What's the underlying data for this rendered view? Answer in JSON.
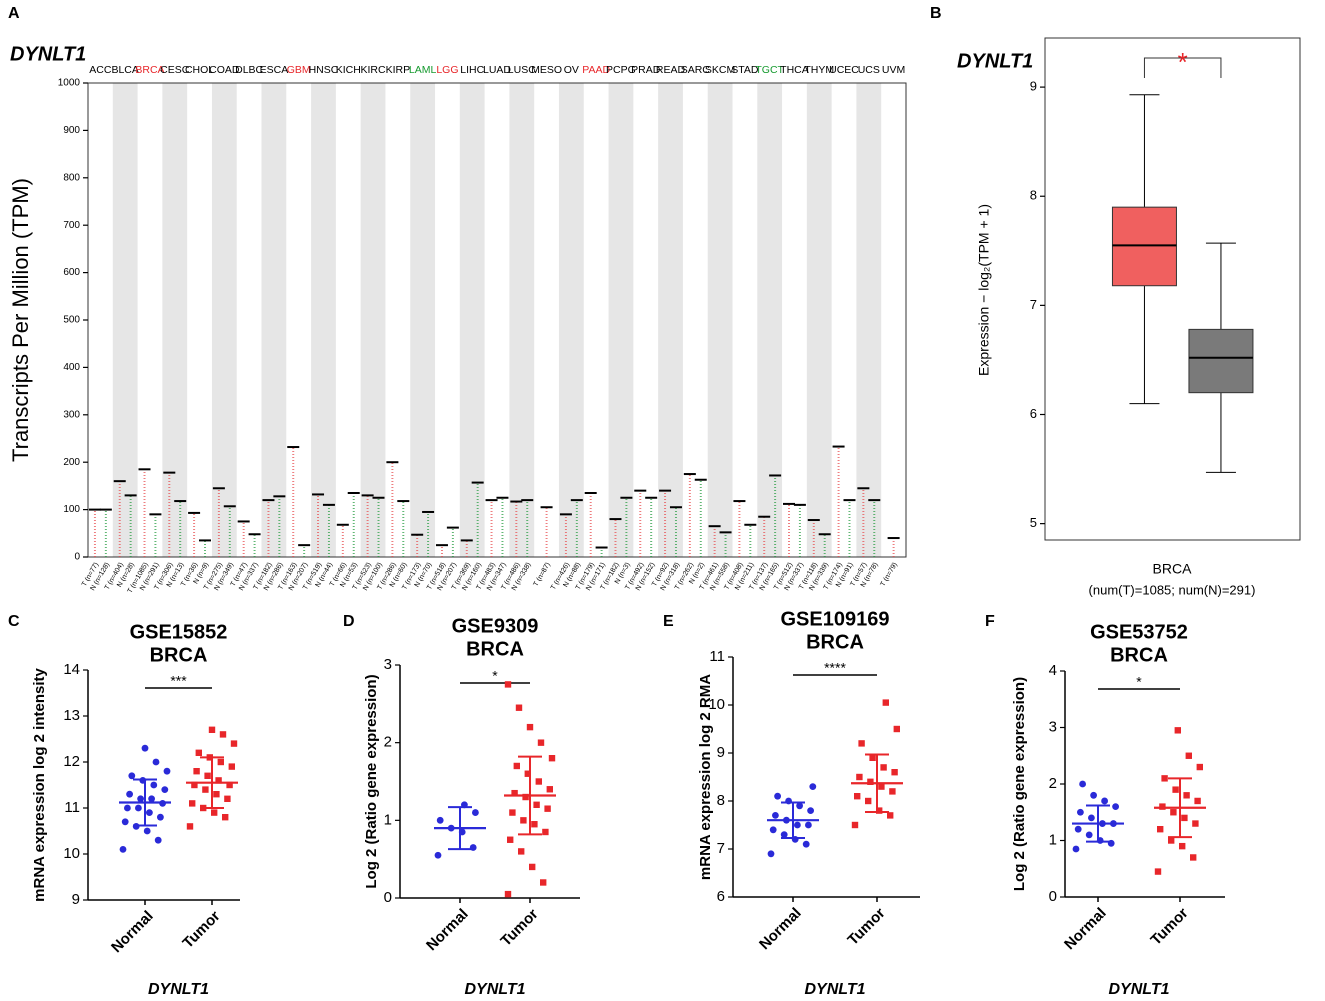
{
  "chart_data": [
    {
      "type": "strip",
      "panel": "A",
      "title": "DYNLT1",
      "ylabel": "Transcripts Per Million (TPM)",
      "ylim": [
        0,
        1000
      ],
      "yticks": [
        0,
        100,
        200,
        300,
        400,
        500,
        600,
        700,
        800,
        900,
        1000
      ],
      "categories": [
        {
          "name": "ACC",
          "color": "#000000",
          "groups": [
            {
              "label": "T (n=77)",
              "color": "#e8474a",
              "median": 100
            },
            {
              "label": "N (n=128)",
              "color": "#1f9a3a",
              "median": 100
            }
          ]
        },
        {
          "name": "BLCA",
          "color": "#000000",
          "groups": [
            {
              "label": "T (n=404)",
              "color": "#e8474a",
              "median": 160
            },
            {
              "label": "N (n=28)",
              "color": "#1f9a3a",
              "median": 130
            }
          ]
        },
        {
          "name": "BRCA",
          "color": "#e8262a",
          "groups": [
            {
              "label": "T (n=1085)",
              "color": "#e8474a",
              "median": 185
            },
            {
              "label": "N (n=291)",
              "color": "#1f9a3a",
              "median": 90
            }
          ]
        },
        {
          "name": "CESC",
          "color": "#000000",
          "groups": [
            {
              "label": "T (n=306)",
              "color": "#e8474a",
              "median": 178
            },
            {
              "label": "N (n=13)",
              "color": "#1f9a3a",
              "median": 118
            }
          ]
        },
        {
          "name": "CHOL",
          "color": "#000000",
          "groups": [
            {
              "label": "T (n=36)",
              "color": "#e8474a",
              "median": 93
            },
            {
              "label": "N (n=9)",
              "color": "#1f9a3a",
              "median": 35
            }
          ]
        },
        {
          "name": "COAD",
          "color": "#000000",
          "groups": [
            {
              "label": "T (n=275)",
              "color": "#e8474a",
              "median": 145
            },
            {
              "label": "N (n=349)",
              "color": "#1f9a3a",
              "median": 107
            }
          ]
        },
        {
          "name": "DLBC",
          "color": "#000000",
          "groups": [
            {
              "label": "T (n=47)",
              "color": "#e8474a",
              "median": 75
            },
            {
              "label": "N (n=337)",
              "color": "#1f9a3a",
              "median": 48
            }
          ]
        },
        {
          "name": "ESCA",
          "color": "#000000",
          "groups": [
            {
              "label": "T (n=182)",
              "color": "#e8474a",
              "median": 120
            },
            {
              "label": "N (n=286)",
              "color": "#1f9a3a",
              "median": 128
            }
          ]
        },
        {
          "name": "GBM",
          "color": "#e8262a",
          "groups": [
            {
              "label": "T (n=163)",
              "color": "#e8474a",
              "median": 232
            },
            {
              "label": "N (n=207)",
              "color": "#1f9a3a",
              "median": 25
            }
          ]
        },
        {
          "name": "HNSC",
          "color": "#000000",
          "groups": [
            {
              "label": "T (n=519)",
              "color": "#e8474a",
              "median": 132
            },
            {
              "label": "N (n=44)",
              "color": "#1f9a3a",
              "median": 110
            }
          ]
        },
        {
          "name": "KICH",
          "color": "#000000",
          "groups": [
            {
              "label": "T (n=66)",
              "color": "#e8474a",
              "median": 68
            },
            {
              "label": "N (n=53)",
              "color": "#1f9a3a",
              "median": 135
            }
          ]
        },
        {
          "name": "KIRC",
          "color": "#000000",
          "groups": [
            {
              "label": "T (n=523)",
              "color": "#e8474a",
              "median": 130
            },
            {
              "label": "N (n=100)",
              "color": "#1f9a3a",
              "median": 125
            }
          ]
        },
        {
          "name": "KIRP",
          "color": "#000000",
          "groups": [
            {
              "label": "T (n=286)",
              "color": "#e8474a",
              "median": 200
            },
            {
              "label": "N (n=60)",
              "color": "#1f9a3a",
              "median": 118
            }
          ]
        },
        {
          "name": "LAML",
          "color": "#169a2f",
          "groups": [
            {
              "label": "T (n=173)",
              "color": "#e8474a",
              "median": 47
            },
            {
              "label": "N (n=70)",
              "color": "#1f9a3a",
              "median": 95
            }
          ]
        },
        {
          "name": "LGG",
          "color": "#e8262a",
          "groups": [
            {
              "label": "T (n=518)",
              "color": "#e8474a",
              "median": 25
            },
            {
              "label": "N (n=207)",
              "color": "#1f9a3a",
              "median": 62
            }
          ]
        },
        {
          "name": "LIHC",
          "color": "#000000",
          "groups": [
            {
              "label": "T (n=369)",
              "color": "#e8474a",
              "median": 35
            },
            {
              "label": "N (n=160)",
              "color": "#1f9a3a",
              "median": 157
            }
          ]
        },
        {
          "name": "LUAD",
          "color": "#000000",
          "groups": [
            {
              "label": "T (n=483)",
              "color": "#e8474a",
              "median": 120
            },
            {
              "label": "N (n=347)",
              "color": "#1f9a3a",
              "median": 125
            }
          ]
        },
        {
          "name": "LUSC",
          "color": "#000000",
          "groups": [
            {
              "label": "T (n=486)",
              "color": "#e8474a",
              "median": 117
            },
            {
              "label": "N (n=338)",
              "color": "#1f9a3a",
              "median": 120
            }
          ]
        },
        {
          "name": "MESO",
          "color": "#000000",
          "groups": [
            {
              "label": "T (n=87)",
              "color": "#e8474a",
              "median": 105
            }
          ]
        },
        {
          "name": "OV",
          "color": "#000000",
          "groups": [
            {
              "label": "T (n=426)",
              "color": "#e8474a",
              "median": 90
            },
            {
              "label": "N (n=88)",
              "color": "#1f9a3a",
              "median": 120
            }
          ]
        },
        {
          "name": "PAAD",
          "color": "#e8262a",
          "groups": [
            {
              "label": "T (n=179)",
              "color": "#e8474a",
              "median": 135
            },
            {
              "label": "N (n=171)",
              "color": "#1f9a3a",
              "median": 20
            }
          ]
        },
        {
          "name": "PCPG",
          "color": "#000000",
          "groups": [
            {
              "label": "T (n=182)",
              "color": "#e8474a",
              "median": 80
            },
            {
              "label": "N (n=3)",
              "color": "#1f9a3a",
              "median": 125
            }
          ]
        },
        {
          "name": "PRAD",
          "color": "#000000",
          "groups": [
            {
              "label": "T (n=492)",
              "color": "#e8474a",
              "median": 140
            },
            {
              "label": "N (n=152)",
              "color": "#1f9a3a",
              "median": 125
            }
          ]
        },
        {
          "name": "READ",
          "color": "#000000",
          "groups": [
            {
              "label": "T (n=92)",
              "color": "#e8474a",
              "median": 140
            },
            {
              "label": "N (n=318)",
              "color": "#1f9a3a",
              "median": 105
            }
          ]
        },
        {
          "name": "SARC",
          "color": "#000000",
          "groups": [
            {
              "label": "T (n=262)",
              "color": "#e8474a",
              "median": 175
            },
            {
              "label": "N (n=2)",
              "color": "#1f9a3a",
              "median": 163
            }
          ]
        },
        {
          "name": "SKCM",
          "color": "#000000",
          "groups": [
            {
              "label": "T (n=461)",
              "color": "#e8474a",
              "median": 65
            },
            {
              "label": "N (n=558)",
              "color": "#1f9a3a",
              "median": 52
            }
          ]
        },
        {
          "name": "STAD",
          "color": "#000000",
          "groups": [
            {
              "label": "T (n=408)",
              "color": "#e8474a",
              "median": 118
            },
            {
              "label": "N (n=211)",
              "color": "#1f9a3a",
              "median": 68
            }
          ]
        },
        {
          "name": "TGCT",
          "color": "#169a2f",
          "groups": [
            {
              "label": "T (n=137)",
              "color": "#e8474a",
              "median": 85
            },
            {
              "label": "N (n=165)",
              "color": "#1f9a3a",
              "median": 172
            }
          ]
        },
        {
          "name": "THCA",
          "color": "#000000",
          "groups": [
            {
              "label": "T (n=512)",
              "color": "#e8474a",
              "median": 112
            },
            {
              "label": "N (n=337)",
              "color": "#1f9a3a",
              "median": 110
            }
          ]
        },
        {
          "name": "THYM",
          "color": "#000000",
          "groups": [
            {
              "label": "T (n=118)",
              "color": "#e8474a",
              "median": 78
            },
            {
              "label": "N (n=339)",
              "color": "#1f9a3a",
              "median": 48
            }
          ]
        },
        {
          "name": "UCEC",
          "color": "#000000",
          "groups": [
            {
              "label": "T (n=174)",
              "color": "#e8474a",
              "median": 233
            },
            {
              "label": "N (n=91)",
              "color": "#1f9a3a",
              "median": 120
            }
          ]
        },
        {
          "name": "UCS",
          "color": "#000000",
          "groups": [
            {
              "label": "T (n=57)",
              "color": "#e8474a",
              "median": 145
            },
            {
              "label": "N (n=78)",
              "color": "#1f9a3a",
              "median": 120
            }
          ]
        },
        {
          "name": "UVM",
          "color": "#000000",
          "groups": [
            {
              "label": "T (n=79)",
              "color": "#e8474a",
              "median": 40
            }
          ]
        }
      ]
    },
    {
      "type": "box",
      "panel": "B",
      "title": "DYNLT1",
      "ylabel": "Expression − log₂(TPM + 1)",
      "ylim": [
        4.85,
        9.45
      ],
      "yticks": [
        5,
        6,
        7,
        8,
        9
      ],
      "category": "BRCA",
      "subtitle": "(num(T)=1085; num(N)=291)",
      "annotation": "*",
      "boxes": [
        {
          "color": "#f0605f",
          "whisker_low": 6.1,
          "q1": 7.18,
          "median": 7.55,
          "q3": 7.9,
          "whisker_high": 8.93
        },
        {
          "color": "#7a7a7a",
          "whisker_low": 5.47,
          "q1": 6.2,
          "median": 6.52,
          "q3": 6.78,
          "whisker_high": 7.57
        }
      ]
    },
    {
      "type": "dot",
      "panel": "C",
      "title": "GSE15852",
      "subtitle": "BRCA",
      "ylabel": "mRNA expression log 2 intensity",
      "xlabel": "DYNLT1",
      "ylim": [
        9,
        14
      ],
      "yticks": [
        9,
        10,
        11,
        12,
        13,
        14
      ],
      "significance": "***",
      "series": [
        {
          "name": "Normal",
          "color": "#2a2ad8",
          "mean": 11.12,
          "sd": 0.5,
          "values": [
            10.1,
            10.3,
            10.5,
            10.6,
            10.7,
            10.8,
            10.9,
            11.0,
            11.0,
            11.1,
            11.2,
            11.2,
            11.3,
            11.4,
            11.5,
            11.6,
            11.7,
            11.8,
            12.0,
            12.3
          ]
        },
        {
          "name": "Tumor",
          "color": "#e8262a",
          "mean": 11.55,
          "sd": 0.55,
          "values": [
            10.6,
            10.8,
            10.9,
            11.0,
            11.1,
            11.2,
            11.3,
            11.4,
            11.5,
            11.5,
            11.6,
            11.7,
            11.8,
            11.9,
            12.0,
            12.1,
            12.2,
            12.4,
            12.6,
            12.7
          ]
        }
      ]
    },
    {
      "type": "dot",
      "panel": "D",
      "title": "GSE9309",
      "subtitle": "BRCA",
      "ylabel": "Log 2 (Ratio gene expression)",
      "xlabel": "DYNLT1",
      "ylim": [
        0,
        3
      ],
      "yticks": [
        0,
        1,
        2,
        3
      ],
      "significance": "*",
      "series": [
        {
          "name": "Normal",
          "color": "#2a2ad8",
          "mean": 0.9,
          "sd": 0.27,
          "values": [
            0.55,
            0.65,
            0.85,
            0.9,
            1.0,
            1.1,
            1.2
          ]
        },
        {
          "name": "Tumor",
          "color": "#e8262a",
          "mean": 1.32,
          "sd": 0.5,
          "values": [
            0.05,
            0.2,
            0.4,
            0.6,
            0.75,
            0.85,
            0.95,
            1.0,
            1.1,
            1.15,
            1.2,
            1.3,
            1.35,
            1.4,
            1.5,
            1.6,
            1.7,
            1.8,
            2.0,
            2.2,
            2.45,
            2.75
          ]
        }
      ]
    },
    {
      "type": "dot",
      "panel": "E",
      "title": "GSE109169",
      "subtitle": "BRCA",
      "ylabel": "mRNA expression log 2 RMA",
      "xlabel": "DYNLT1",
      "ylim": [
        6,
        11
      ],
      "yticks": [
        6,
        7,
        8,
        9,
        10,
        11
      ],
      "significance": "****",
      "series": [
        {
          "name": "Normal",
          "color": "#2a2ad8",
          "mean": 7.6,
          "sd": 0.37,
          "values": [
            6.9,
            7.1,
            7.2,
            7.3,
            7.4,
            7.5,
            7.5,
            7.6,
            7.7,
            7.8,
            7.9,
            8.0,
            8.1,
            8.3
          ]
        },
        {
          "name": "Tumor",
          "color": "#e8262a",
          "mean": 8.37,
          "sd": 0.6,
          "values": [
            7.5,
            7.7,
            7.8,
            8.0,
            8.1,
            8.2,
            8.3,
            8.4,
            8.5,
            8.6,
            8.7,
            8.9,
            9.2,
            9.5,
            10.05
          ]
        }
      ]
    },
    {
      "type": "dot",
      "panel": "F",
      "title": "GSE53752",
      "subtitle": "BRCA",
      "ylabel": "Log 2 (Ratio gene expression)",
      "xlabel": "DYNLT1",
      "ylim": [
        0,
        4
      ],
      "yticks": [
        0,
        1,
        2,
        3,
        4
      ],
      "significance": "*",
      "series": [
        {
          "name": "Normal",
          "color": "#2a2ad8",
          "mean": 1.3,
          "sd": 0.32,
          "values": [
            0.85,
            0.95,
            1.0,
            1.1,
            1.2,
            1.3,
            1.3,
            1.4,
            1.5,
            1.6,
            1.7,
            1.8,
            2.0
          ]
        },
        {
          "name": "Tumor",
          "color": "#e8262a",
          "mean": 1.58,
          "sd": 0.52,
          "values": [
            0.45,
            0.7,
            0.9,
            1.0,
            1.2,
            1.3,
            1.4,
            1.5,
            1.6,
            1.7,
            1.8,
            1.9,
            2.1,
            2.3,
            2.5,
            2.95
          ]
        }
      ]
    }
  ]
}
